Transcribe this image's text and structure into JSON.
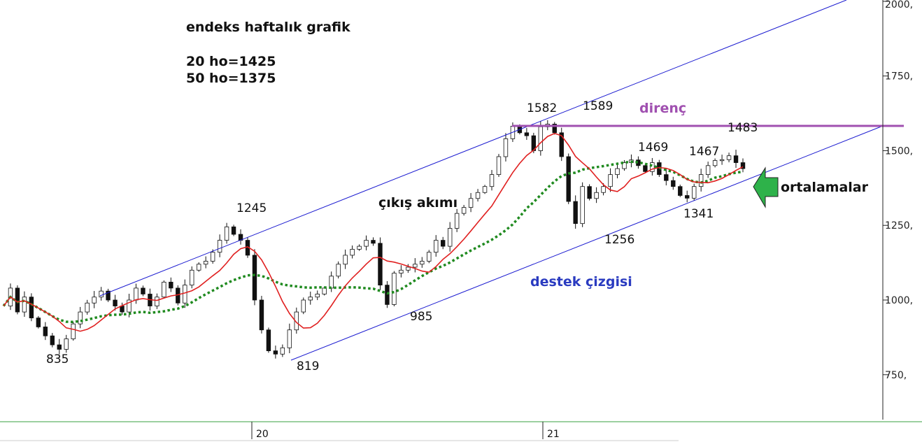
{
  "chart_data": {
    "type": "candlestick",
    "title": "endeks haftalık grafik",
    "moving_averages": [
      {
        "label": "20 ho=1425",
        "color": "#e02020"
      },
      {
        "label": "50 ho=1375",
        "color": "#1f8a1f",
        "style": "dotted"
      }
    ],
    "y_axis": {
      "ticks": [
        2000,
        1750,
        1500,
        1250,
        1000,
        750
      ],
      "tick_labels": [
        "2000,",
        "1750,",
        "1500,",
        "1250,",
        "1000,",
        "750,"
      ],
      "position": "right"
    },
    "x_axis": {
      "ticks": [
        "20",
        "21"
      ]
    },
    "price_path": [
      980,
      1040,
      960,
      1010,
      940,
      910,
      880,
      850,
      835,
      870,
      920,
      960,
      990,
      1010,
      1030,
      1000,
      980,
      960,
      1000,
      1040,
      1020,
      980,
      1010,
      1060,
      1040,
      990,
      1050,
      1100,
      1120,
      1130,
      1160,
      1200,
      1245,
      1220,
      1200,
      1150,
      1000,
      900,
      830,
      819,
      840,
      900,
      960,
      1000,
      1010,
      1020,
      1040,
      1080,
      1120,
      1150,
      1170,
      1180,
      1200,
      1190,
      1050,
      985,
      1090,
      1100,
      1110,
      1120,
      1130,
      1160,
      1200,
      1180,
      1240,
      1290,
      1310,
      1340,
      1360,
      1380,
      1420,
      1480,
      1540,
      1582,
      1560,
      1550,
      1500,
      1580,
      1589,
      1560,
      1480,
      1330,
      1256,
      1380,
      1340,
      1360,
      1380,
      1420,
      1440,
      1460,
      1469,
      1450,
      1430,
      1460,
      1420,
      1400,
      1380,
      1350,
      1341,
      1380,
      1420,
      1450,
      1467,
      1470,
      1483,
      1460,
      1440
    ],
    "annotations": {
      "prices": [
        "835",
        "1245",
        "819",
        "985",
        "1582",
        "1589",
        "1256",
        "1469",
        "1467",
        "1483",
        "1341"
      ],
      "direnc": "direnç",
      "cikis": "çıkış akımı",
      "destek": "destek çizgisi",
      "ortalamalar": "ortalamalar"
    },
    "colors": {
      "channel": "#1a1ad0",
      "resistance": "#a050b0",
      "ma20": "#e02020",
      "ma50": "#1f8a1f",
      "arrow": "#2eb24a",
      "support_label": "#2a3bc0"
    },
    "grid": false
  }
}
